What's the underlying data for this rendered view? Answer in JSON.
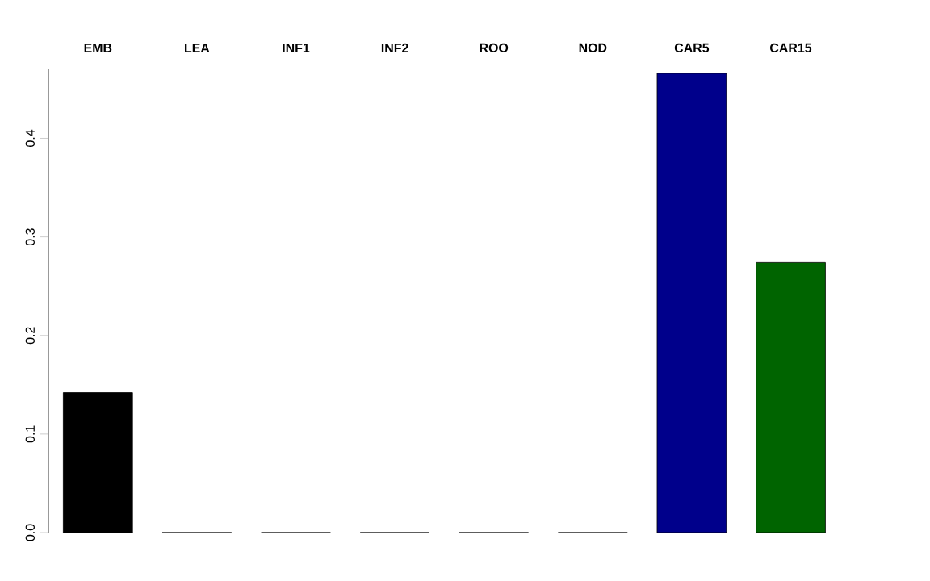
{
  "chart_data": {
    "type": "bar",
    "categories": [
      "EMB",
      "LEA",
      "INF1",
      "INF2",
      "ROO",
      "NOD",
      "CAR5",
      "CAR15"
    ],
    "values": [
      0.142,
      0,
      0,
      0,
      0,
      0,
      0.466,
      0.274
    ],
    "colors": [
      "#000000",
      "#000000",
      "#000000",
      "#000000",
      "#000000",
      "#000000",
      "#00008b",
      "#006400"
    ],
    "ylim": [
      0,
      0.47
    ],
    "yticks": [
      {
        "value": 0,
        "label": "0.0"
      },
      {
        "value": 0.1,
        "label": "0.1"
      },
      {
        "value": 0.2,
        "label": "0.2"
      },
      {
        "value": 0.3,
        "label": "0.3"
      },
      {
        "value": 0.4,
        "label": "0.4"
      }
    ],
    "grid": false
  }
}
